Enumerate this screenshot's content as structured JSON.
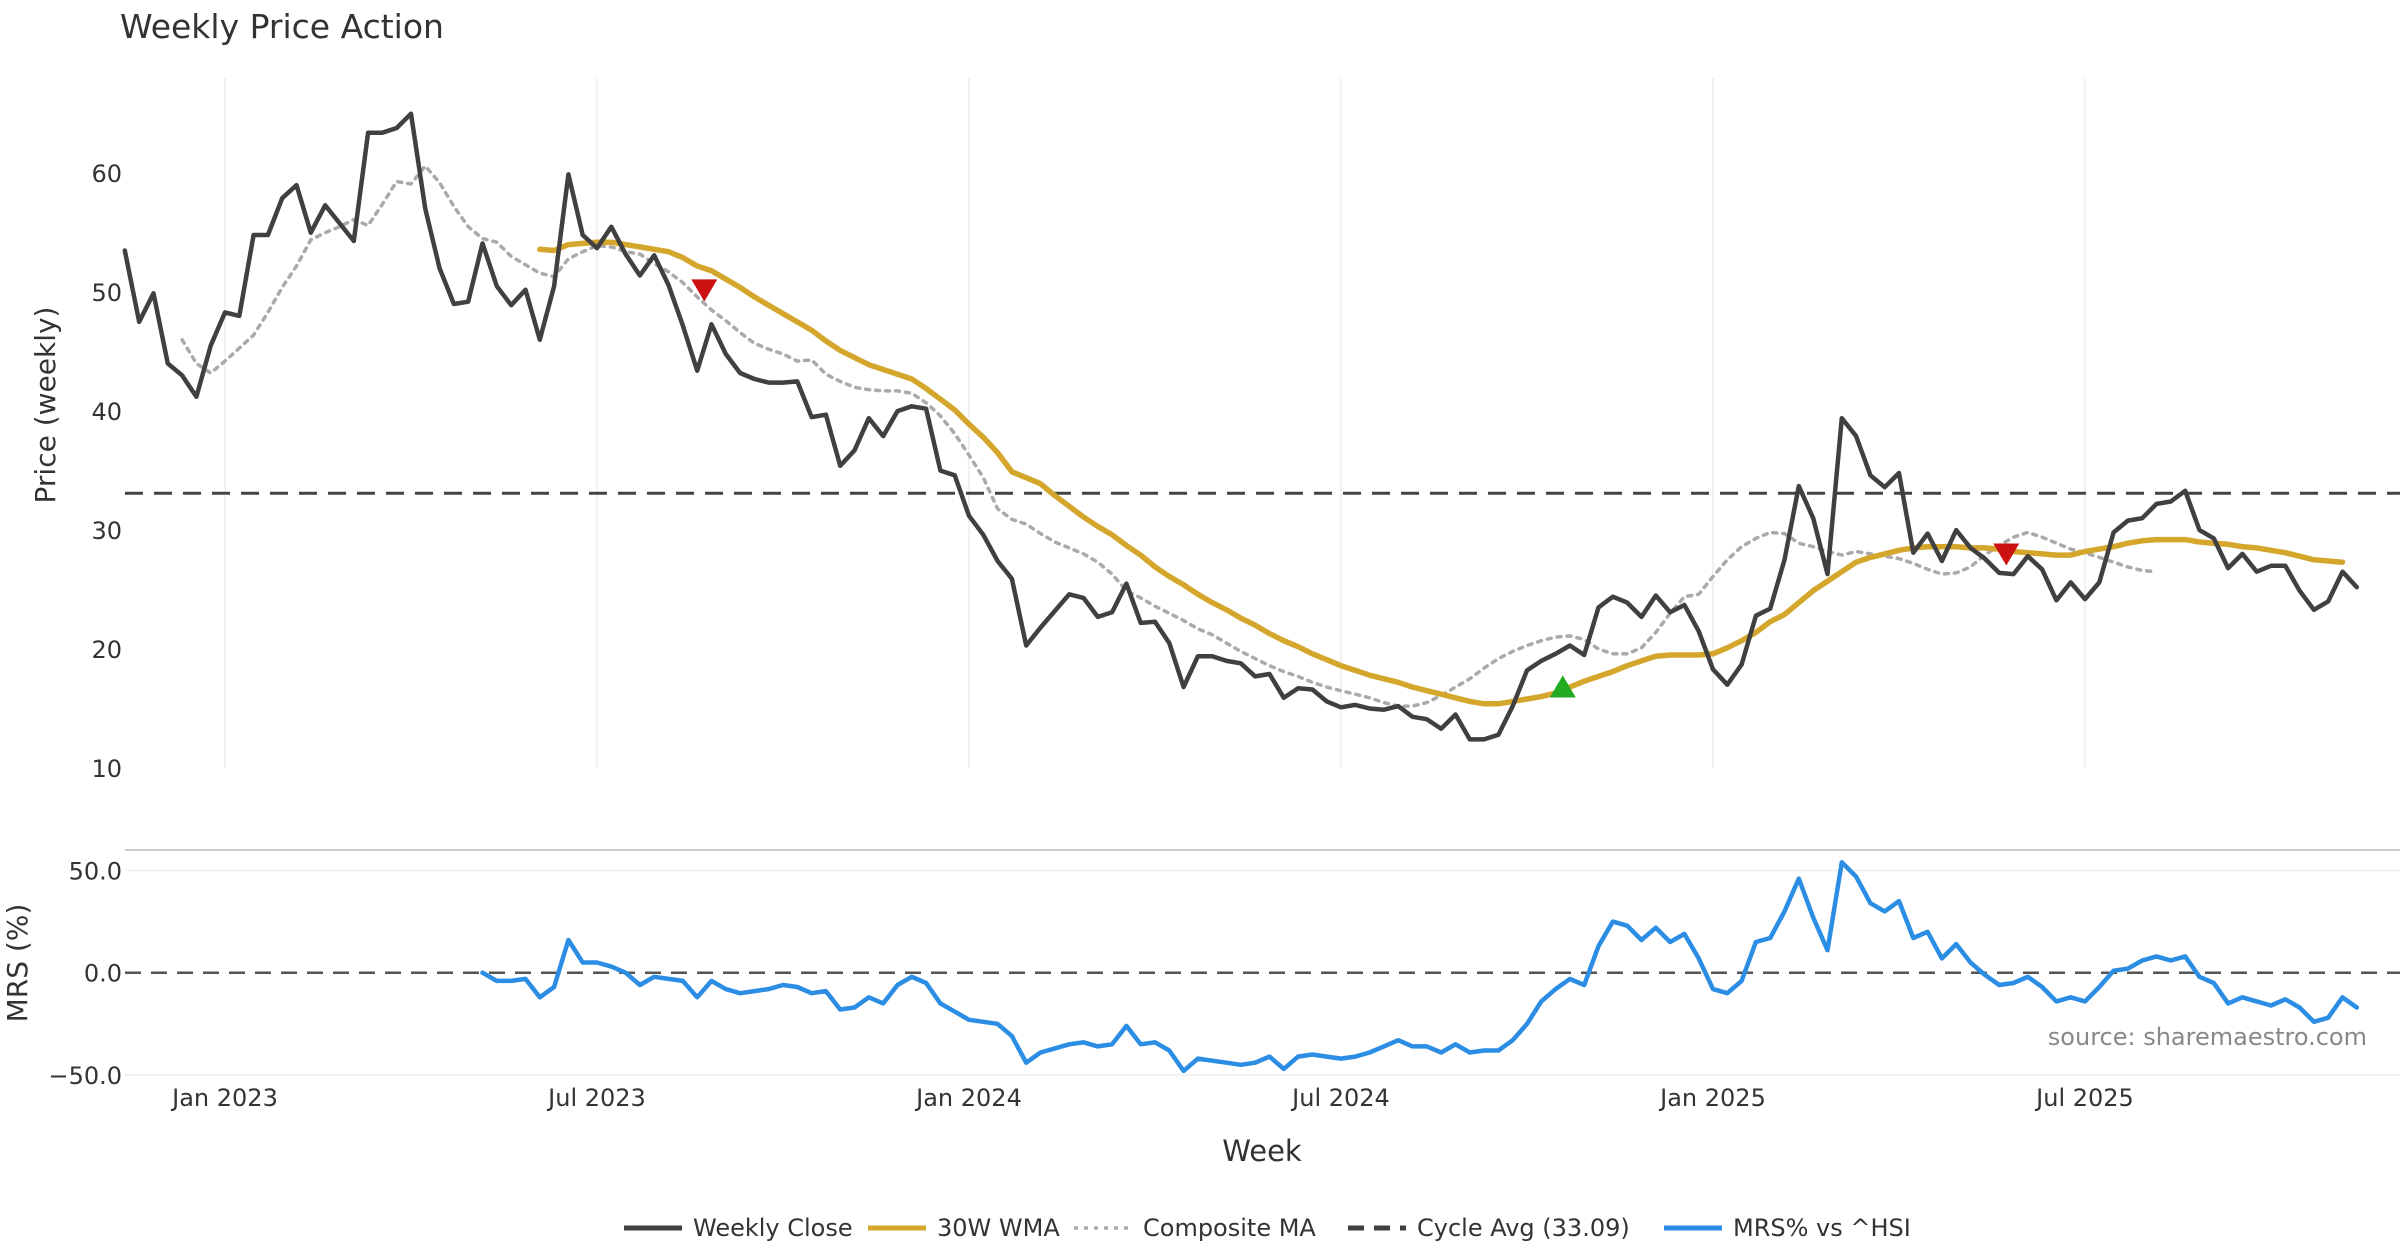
{
  "chart_data": {
    "type": "line",
    "title": "Weekly Price Action",
    "xlabel": "Week",
    "source": "source: sharemaestro.com",
    "x_ticks": [
      "Jan 2023",
      "Jul 2023",
      "Jan 2024",
      "Jul 2024",
      "Jan 2025",
      "Jul 2025"
    ],
    "x_tick_weeks": [
      0,
      26,
      52,
      78,
      104,
      130
    ],
    "x_range_weeks": [
      -7,
      150
    ],
    "price_panel": {
      "ylabel": "Price (weekly)",
      "ylim": [
        10,
        68
      ],
      "yticks": [
        10,
        20,
        30,
        40,
        50,
        60
      ],
      "cycle_avg": 33.09,
      "series": [
        {
          "name": "Weekly Close",
          "color": "#404040",
          "start_week": -7,
          "values": [
            53.5,
            47.5,
            49.9,
            44.0,
            43.0,
            41.2,
            45.5,
            48.3,
            48.0,
            54.8,
            54.8,
            57.9,
            59.0,
            55.0,
            57.3,
            55.8,
            54.3,
            63.4,
            63.4,
            63.8,
            65.0,
            57.0,
            52.0,
            49.0,
            49.2,
            54.1,
            50.5,
            48.9,
            50.2,
            46.0,
            50.5,
            59.9,
            54.8,
            53.7,
            55.5,
            53.2,
            51.4,
            53.1,
            50.6,
            47.2,
            43.4,
            47.3,
            44.8,
            43.2,
            42.7,
            42.4,
            42.4,
            42.5,
            39.5,
            39.7,
            35.4,
            36.7,
            39.4,
            37.9,
            40.0,
            40.4,
            40.2,
            35.0,
            34.6,
            31.2,
            29.6,
            27.4,
            25.9,
            20.3,
            21.8,
            23.2,
            24.6,
            24.3,
            22.7,
            23.1,
            25.5,
            22.2,
            22.3,
            20.5,
            16.8,
            19.4,
            19.4,
            19.0,
            18.8,
            17.7,
            17.9,
            15.9,
            16.7,
            16.6,
            15.6,
            15.1,
            15.3,
            15.0,
            14.9,
            15.2,
            14.3,
            14.1,
            13.3,
            14.5,
            12.4,
            12.4,
            12.8,
            15.2,
            18.2,
            19.0,
            19.6,
            20.3,
            19.5,
            23.5,
            24.4,
            23.9,
            22.7,
            24.5,
            23.1,
            23.7,
            21.5,
            18.3,
            17.0,
            18.7,
            22.8,
            23.4,
            27.5,
            33.7,
            31.0,
            26.3,
            39.4,
            37.9,
            34.6,
            33.6,
            34.8,
            28.1,
            29.7,
            27.4,
            30.0,
            28.5,
            27.6,
            26.4,
            26.3,
            27.8,
            26.7,
            24.1,
            25.6,
            24.2,
            25.6,
            29.8,
            30.8,
            31.0,
            32.2,
            32.4,
            33.3,
            30.0,
            29.3,
            26.8,
            28.0,
            26.5,
            27.0,
            27.0,
            24.9,
            23.3,
            24.0,
            26.5,
            25.2
          ]
        },
        {
          "name": "30W WMA",
          "color": "#d4a72c",
          "start_week": 22,
          "values": [
            53.6,
            53.5,
            54.0,
            54.1,
            54.2,
            54.2,
            54.0,
            53.8,
            53.6,
            53.4,
            52.9,
            52.2,
            51.8,
            51.1,
            50.4,
            49.6,
            48.9,
            48.2,
            47.5,
            46.8,
            45.9,
            45.1,
            44.5,
            43.9,
            43.5,
            43.1,
            42.7,
            41.9,
            41.0,
            40.1,
            38.9,
            37.8,
            36.5,
            34.9,
            34.4,
            33.9,
            32.9,
            32.0,
            31.1,
            30.3,
            29.6,
            28.7,
            27.9,
            26.9,
            26.1,
            25.4,
            24.6,
            23.9,
            23.3,
            22.6,
            22.0,
            21.3,
            20.7,
            20.2,
            19.6,
            19.1,
            18.6,
            18.2,
            17.8,
            17.5,
            17.2,
            16.8,
            16.5,
            16.2,
            15.9,
            15.6,
            15.4,
            15.4,
            15.6,
            15.8,
            16.0,
            16.3,
            16.8,
            17.3,
            17.7,
            18.1,
            18.6,
            19.0,
            19.4,
            19.5,
            19.5,
            19.5,
            19.6,
            20.1,
            20.7,
            21.4,
            22.3,
            22.9,
            23.9,
            24.9,
            25.7,
            26.5,
            27.3,
            27.7,
            28.0,
            28.3,
            28.5,
            28.6,
            28.6,
            28.6,
            28.5,
            28.5,
            28.4,
            28.2,
            28.1,
            28.0,
            27.9,
            27.9,
            28.2,
            28.4,
            28.6,
            28.9,
            29.1,
            29.2,
            29.2,
            29.2,
            29.0,
            28.9,
            28.8,
            28.6,
            28.5,
            28.3,
            28.1,
            27.8,
            27.5,
            27.4,
            27.3
          ]
        },
        {
          "name": "Composite MA",
          "color": "#aaaaaa",
          "start_week": -3,
          "values": [
            46.0,
            44.0,
            43.2,
            44.2,
            45.3,
            46.4,
            48.3,
            50.4,
            52.2,
            54.4,
            55.0,
            55.5,
            56.1,
            55.6,
            57.4,
            59.3,
            59.1,
            60.6,
            59.2,
            57.2,
            55.5,
            54.5,
            54.2,
            53.0,
            52.3,
            51.6,
            51.3,
            52.8,
            53.4,
            53.9,
            53.8,
            53.4,
            53.2,
            52.4,
            51.7,
            50.8,
            49.6,
            48.5,
            47.6,
            46.6,
            45.7,
            45.2,
            44.8,
            44.2,
            44.3,
            43.1,
            42.5,
            42.0,
            41.8,
            41.7,
            41.7,
            41.5,
            40.7,
            39.6,
            38.1,
            36.3,
            34.4,
            31.8,
            30.9,
            30.5,
            29.7,
            29.0,
            28.5,
            28.0,
            27.3,
            26.3,
            24.9,
            24.3,
            23.6,
            23.0,
            22.4,
            21.7,
            21.2,
            20.5,
            19.8,
            19.2,
            18.6,
            18.1,
            17.7,
            17.2,
            16.8,
            16.5,
            16.2,
            15.9,
            15.5,
            15.2,
            15.2,
            15.5,
            16.1,
            16.8,
            17.5,
            18.4,
            19.2,
            19.8,
            20.3,
            20.7,
            21.0,
            21.1,
            20.8,
            20.0,
            19.6,
            19.6,
            20.1,
            21.4,
            23.0,
            24.4,
            24.6,
            26.1,
            27.5,
            28.6,
            29.3,
            29.8,
            29.7,
            28.9,
            28.6,
            28.2,
            27.9,
            28.2,
            28.0,
            27.8,
            27.6,
            27.2,
            26.7,
            26.3,
            26.4,
            26.9,
            27.9,
            28.7,
            29.4,
            29.8,
            29.4,
            28.9,
            28.4,
            28.1,
            27.7,
            27.3,
            26.9,
            26.6,
            26.5
          ]
        }
      ],
      "markers": [
        {
          "type": "sell",
          "week": 33.5,
          "value": 50.2,
          "color": "#cc1111"
        },
        {
          "type": "buy",
          "week": 93.5,
          "value": 16.8,
          "color": "#22aa22"
        },
        {
          "type": "sell",
          "week": 124.5,
          "value": 28.0,
          "color": "#cc1111"
        }
      ]
    },
    "mrs_panel": {
      "ylabel": "MRS (%)",
      "ylim": [
        -50,
        60
      ],
      "yticks": [
        50,
        0,
        -50
      ],
      "ytick_labels": [
        "50.0",
        "0.0",
        "−50.0"
      ],
      "series": [
        {
          "name": "MRS% vs ^HSI",
          "color": "#2b8de4",
          "start_week": 18,
          "values": [
            0,
            -4,
            -4,
            -3,
            -12,
            -7,
            16,
            5,
            5,
            3,
            0,
            -6,
            -2,
            -3,
            -4,
            -12,
            -4,
            -8,
            -10,
            -9,
            -8,
            -6,
            -7,
            -10,
            -9,
            -18,
            -17,
            -12,
            -15,
            -6,
            -2,
            -5,
            -15,
            -19,
            -23,
            -24,
            -25,
            -31,
            -44,
            -39,
            -37,
            -35,
            -34,
            -36,
            -35,
            -26,
            -35,
            -34,
            -38,
            -48,
            -42,
            -43,
            -44,
            -45,
            -44,
            -41,
            -47,
            -41,
            -40,
            -41,
            -42,
            -41,
            -39,
            -36,
            -33,
            -36,
            -36,
            -39,
            -35,
            -39,
            -38,
            -38,
            -33,
            -25,
            -14,
            -8,
            -3,
            -6,
            13,
            25,
            23,
            16,
            22,
            15,
            19,
            7,
            -8,
            -10,
            -4,
            15,
            17,
            30,
            46,
            27,
            11,
            54,
            47,
            34,
            30,
            35,
            17,
            20,
            7,
            14,
            5,
            -1,
            -6,
            -5,
            -2,
            -7,
            -14,
            -12,
            -14,
            -7,
            1,
            2,
            6,
            8,
            6,
            8,
            -2,
            -5,
            -15,
            -12,
            -14,
            -16,
            -13,
            -17,
            -24,
            -22,
            -12,
            -17
          ]
        }
      ]
    },
    "legend": [
      {
        "label": "Weekly Close",
        "color": "#404040",
        "style": "solid"
      },
      {
        "label": "30W WMA",
        "color": "#d4a72c",
        "style": "solid"
      },
      {
        "label": "Composite MA",
        "color": "#aaaaaa",
        "style": "dotted"
      },
      {
        "label": "Cycle Avg (33.09)",
        "color": "#404040",
        "style": "dashed"
      },
      {
        "label": "MRS% vs ^HSI",
        "color": "#2b8de4",
        "style": "solid"
      }
    ]
  }
}
